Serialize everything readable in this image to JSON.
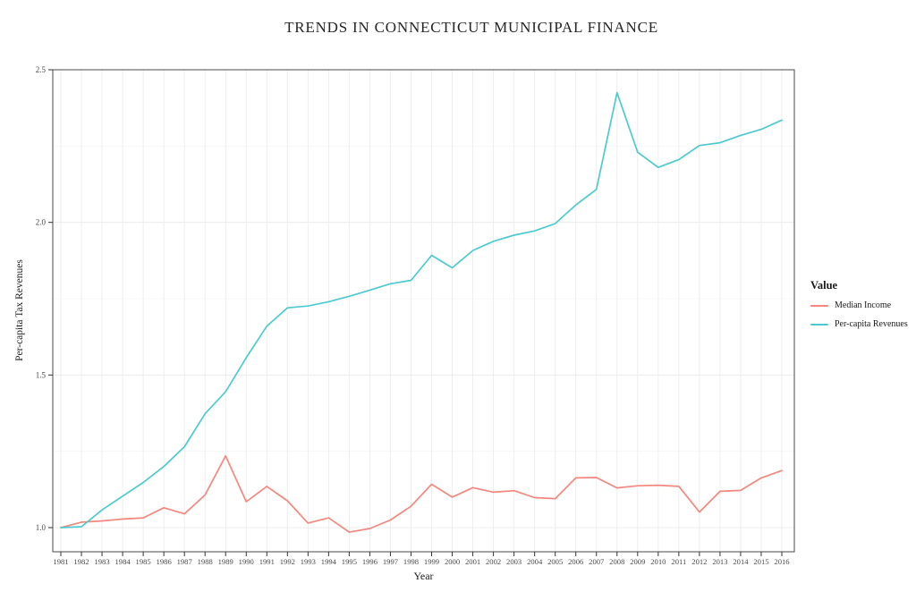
{
  "chart_data": {
    "type": "line",
    "title": "TRENDS IN CONNECTICUT MUNICIPAL FINANCE",
    "xlabel": "Year",
    "ylabel": "Per-capita Tax Revenues",
    "legend_title": "Value",
    "legend_position": "right",
    "grid": "on",
    "panel_border": "#4a4a4a",
    "gridline_major_color": "#ececec",
    "gridline_minor_color": "#f6f6f6",
    "tick_label_color": "#4a4a4a",
    "ylim": [
      0.92,
      2.5
    ],
    "yticks": [
      1.0,
      1.5,
      2.0,
      2.5
    ],
    "ytick_labels": [
      "1.0",
      "1.5",
      "2.0",
      "2.5"
    ],
    "yminor": [
      1.25,
      1.75,
      2.25
    ],
    "x": [
      1981,
      1982,
      1983,
      1984,
      1985,
      1986,
      1987,
      1988,
      1989,
      1990,
      1991,
      1992,
      1993,
      1994,
      1995,
      1996,
      1997,
      1998,
      1999,
      2000,
      2001,
      2002,
      2003,
      2004,
      2005,
      2006,
      2007,
      2008,
      2009,
      2010,
      2011,
      2012,
      2013,
      2014,
      2015,
      2016
    ],
    "series": [
      {
        "name": "Median Income",
        "color": "#F4877E",
        "values": [
          1.0,
          1.018,
          1.022,
          1.028,
          1.032,
          1.065,
          1.045,
          1.107,
          1.235,
          1.085,
          1.135,
          1.088,
          1.015,
          1.032,
          0.985,
          0.997,
          1.025,
          1.07,
          1.142,
          1.1,
          1.131,
          1.116,
          1.121,
          1.098,
          1.095,
          1.163,
          1.164,
          1.13,
          1.137,
          1.139,
          1.135,
          1.051,
          1.119,
          1.122,
          1.163,
          1.187
        ]
      },
      {
        "name": "Per-capita Revenues",
        "color": "#4CCAD0",
        "values": [
          1.0,
          1.003,
          1.058,
          1.103,
          1.148,
          1.2,
          1.265,
          1.373,
          1.445,
          1.557,
          1.66,
          1.72,
          1.726,
          1.74,
          1.758,
          1.778,
          1.799,
          1.81,
          1.892,
          1.851,
          1.908,
          1.938,
          1.958,
          1.972,
          1.996,
          2.057,
          2.108,
          2.425,
          2.23,
          2.18,
          2.206,
          2.252,
          2.261,
          2.285,
          2.305,
          2.335
        ]
      }
    ]
  }
}
